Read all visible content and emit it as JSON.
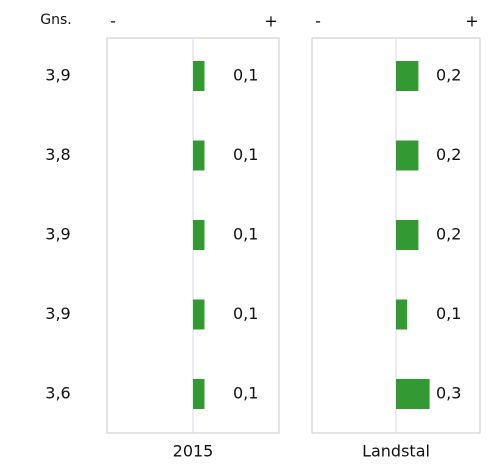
{
  "row_header": "Gns.",
  "row_labels": [
    "3,9",
    "3,8",
    "3,9",
    "3,9",
    "3,6"
  ],
  "chart_data": [
    {
      "type": "bar",
      "orientation": "horizontal",
      "xlabel": "2015",
      "min_label": "-",
      "max_label": "+",
      "values": [
        0.1,
        0.1,
        0.1,
        0.1,
        0.1
      ],
      "value_labels": [
        "0,1",
        "0,1",
        "0,1",
        "0,1",
        "0,1"
      ],
      "color": "#339933",
      "xlim": [
        -0.75,
        0.75
      ]
    },
    {
      "type": "bar",
      "orientation": "horizontal",
      "xlabel": "Landstal",
      "min_label": "-",
      "max_label": "+",
      "values": [
        0.2,
        0.2,
        0.2,
        0.1,
        0.3
      ],
      "value_labels": [
        "0,2",
        "0,2",
        "0,2",
        "0,1",
        "0,3"
      ],
      "color": "#339933",
      "xlim": [
        -0.75,
        0.75
      ]
    }
  ]
}
